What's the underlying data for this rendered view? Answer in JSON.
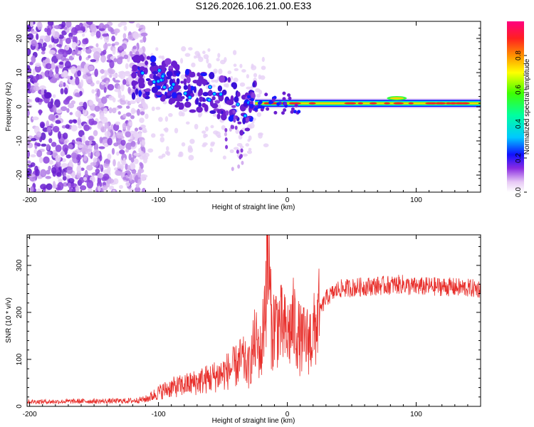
{
  "title": "S126.2026.106.21.00.E33",
  "chart_data": [
    {
      "type": "heatmap",
      "title": "S126.2026.106.21.00.E33",
      "xlabel": "Height of straight line (km)",
      "ylabel": "Frequency (Hz)",
      "xlim": [
        -202,
        150
      ],
      "ylim": [
        -25,
        25
      ],
      "x_ticks": [
        -200,
        -100,
        0,
        100
      ],
      "y_ticks": [
        -20,
        -10,
        0,
        10,
        20
      ],
      "colorbar": {
        "label": "Normalized spectral amplitude",
        "range": [
          0,
          1
        ],
        "ticks": [
          0.0,
          0.2,
          0.4,
          0.6,
          0.8
        ]
      },
      "features": {
        "noise_region_x": [
          -202,
          -110
        ],
        "descending_signal": {
          "x": [
            -120,
            -95,
            -80,
            -60,
            -45,
            -35,
            -25
          ],
          "y": [
            9,
            8,
            5,
            4,
            2,
            -2,
            1
          ]
        },
        "tone_line": {
          "x_start": -25,
          "x_end": 150,
          "y": 1
        }
      }
    },
    {
      "type": "line",
      "xlabel": "Height of straight line (km)",
      "ylabel": "SNR (10 * v/v)",
      "xlim": [
        -202,
        150
      ],
      "ylim": [
        0,
        365
      ],
      "x_ticks": [
        -200,
        -100,
        0,
        100
      ],
      "y_ticks": [
        0,
        100,
        200,
        300
      ],
      "series": [
        {
          "name": "SNR",
          "color": "#e8302c",
          "x": [
            -202,
            -180,
            -160,
            -140,
            -120,
            -110,
            -105,
            -100,
            -90,
            -80,
            -70,
            -60,
            -50,
            -40,
            -35,
            -30,
            -25,
            -20,
            -18,
            -15,
            -12,
            -10,
            -5,
            0,
            5,
            10,
            15,
            20,
            25,
            30,
            40,
            60,
            80,
            90,
            95,
            100,
            120,
            150
          ],
          "y": [
            10,
            10,
            11,
            11,
            12,
            15,
            22,
            30,
            40,
            45,
            52,
            60,
            70,
            85,
            100,
            80,
            140,
            110,
            200,
            330,
            150,
            180,
            170,
            150,
            180,
            140,
            140,
            150,
            200,
            230,
            250,
            255,
            258,
            260,
            255,
            255,
            255,
            250
          ]
        }
      ]
    }
  ]
}
